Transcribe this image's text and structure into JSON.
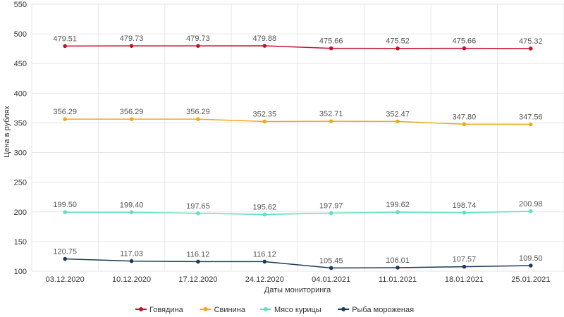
{
  "chart_data": {
    "type": "line",
    "title": "",
    "xlabel": "Даты мониторинга",
    "ylabel": "Цена в рублях",
    "ylim": [
      100,
      550
    ],
    "yticks": [
      100,
      150,
      200,
      250,
      300,
      350,
      400,
      450,
      500,
      550
    ],
    "grid": true,
    "legend_position": "bottom-center",
    "categories": [
      "03.12.2020",
      "10.12.2020",
      "17.12.2020",
      "24.12.2020",
      "04.01.2021",
      "11.01.2021",
      "18.01.2021",
      "25.01.2021"
    ],
    "series": [
      {
        "name": "Говядина",
        "color": "#c8102e",
        "values": [
          479.51,
          479.73,
          479.73,
          479.88,
          475.66,
          475.52,
          475.66,
          475.32
        ],
        "labels": [
          "479.51",
          "479.73",
          "479.73",
          "479.88",
          "475.66",
          "475.52",
          "475.66",
          "475.32"
        ]
      },
      {
        "name": "Свинина",
        "color": "#f2a81d",
        "values": [
          356.29,
          356.29,
          356.29,
          352.35,
          352.71,
          352.47,
          347.8,
          347.56
        ],
        "labels": [
          "356.29",
          "356.29",
          "356.29",
          "352.35",
          "352.71",
          "352.47",
          "347.80",
          "347.56"
        ]
      },
      {
        "name": "Мясо курицы",
        "color": "#5ee0c2",
        "values": [
          199.5,
          199.4,
          197.65,
          195.62,
          197.97,
          199.62,
          198.74,
          200.98
        ],
        "labels": [
          "199.50",
          "199.40",
          "197.65",
          "195.62",
          "197.97",
          "199.62",
          "198.74",
          "200.98"
        ]
      },
      {
        "name": "Рыба мороженая",
        "color": "#1c3a5a",
        "values": [
          120.75,
          117.03,
          116.12,
          116.12,
          105.45,
          106.01,
          107.57,
          109.5
        ],
        "labels": [
          "120.75",
          "117.03",
          "116.12",
          "116.12",
          "105.45",
          "106.01",
          "107.57",
          "109.50"
        ]
      }
    ]
  }
}
